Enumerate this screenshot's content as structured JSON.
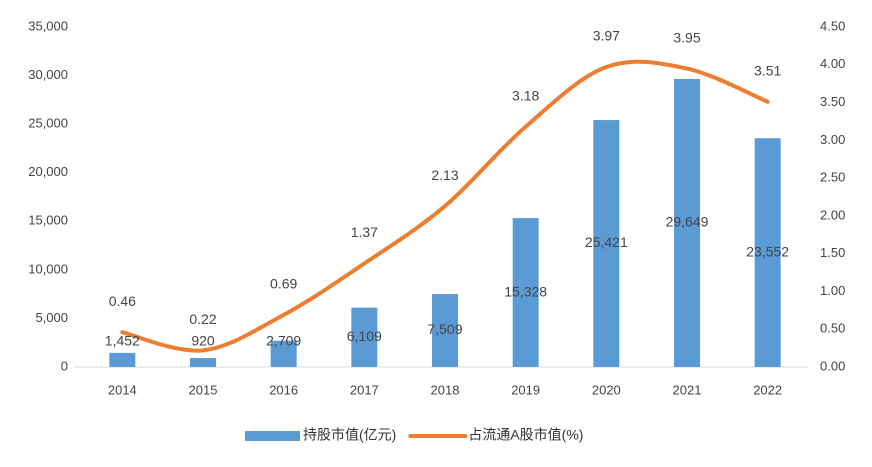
{
  "chart_data": {
    "type": "bar-line",
    "categories": [
      "2014",
      "2015",
      "2016",
      "2017",
      "2018",
      "2019",
      "2020",
      "2021",
      "2022"
    ],
    "series": [
      {
        "name": "持股市值(亿元)",
        "color": "#5b9bd5",
        "type": "bar",
        "axis": "y",
        "values": [
          1452,
          920,
          2709,
          6109,
          7509,
          15328,
          25421,
          29649,
          23552
        ],
        "value_labels": [
          "1,452",
          "920",
          "2,709",
          "6,109",
          "7,509",
          "15,328",
          "25,421",
          "29,649",
          "23,552"
        ]
      },
      {
        "name": "占流通A股市值(%)",
        "color": "#ed7d31",
        "type": "line",
        "axis": "y2",
        "values": [
          0.46,
          0.22,
          0.69,
          1.37,
          2.13,
          3.18,
          3.97,
          3.95,
          3.51
        ]
      }
    ],
    "ylim": [
      0,
      35000
    ],
    "yticks": [
      0,
      {
        "value": 5000,
        "label": "5,000"
      },
      {
        "value": 10000,
        "label": "10,000"
      },
      {
        "value": 15000,
        "label": "15,000"
      },
      {
        "value": 20000,
        "label": "20,000"
      },
      {
        "value": 25000,
        "label": "25,000"
      },
      {
        "value": 30000,
        "label": "30,000"
      },
      {
        "value": 35000,
        "label": "35,000"
      }
    ],
    "y2lim": [
      0,
      4.5
    ],
    "y2ticks": [
      {
        "value": 0,
        "label": "0.00"
      },
      {
        "value": 0.5,
        "label": "0.50"
      },
      {
        "value": 1,
        "label": "1.00"
      },
      {
        "value": 1.5,
        "label": "1.50"
      },
      {
        "value": 2,
        "label": "2.00"
      },
      {
        "value": 2.5,
        "label": "2.50"
      },
      {
        "value": 3,
        "label": "3.00"
      },
      {
        "value": 3.5,
        "label": "3.50"
      },
      {
        "value": 4,
        "label": "4.00"
      },
      {
        "value": 4.5,
        "label": "4.50"
      }
    ],
    "legend": "bottom"
  }
}
